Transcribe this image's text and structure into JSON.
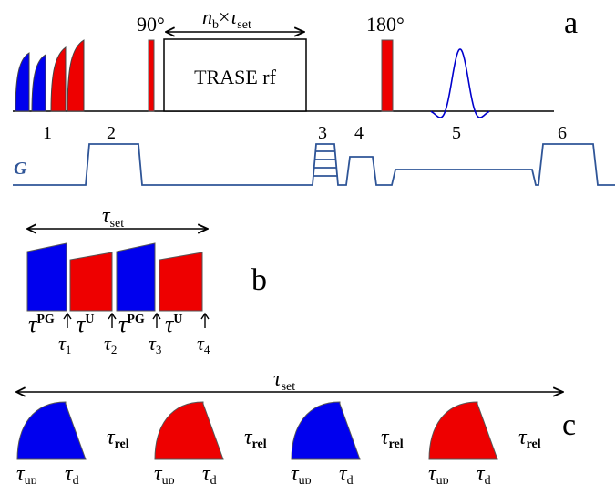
{
  "colors": {
    "blue": "#0000ee",
    "red": "#ee0000",
    "gradient_line": "#2f5597",
    "stroke": "#000000",
    "wave": "#0000cc",
    "g_label": "#2f5597"
  },
  "panel_a": {
    "label": "a",
    "pulse_90_label": "90°",
    "pulse_180_label": "180°",
    "nb_label": {
      "n": "n",
      "n_sub": "b",
      "times": "×",
      "tau": "τ",
      "tau_sub": "set"
    },
    "trase_label": "TRASE rf",
    "gradient_axis_label": "G",
    "segment_numbers": [
      "1",
      "2",
      "3",
      "4",
      "5",
      "6"
    ]
  },
  "panel_b": {
    "label": "b",
    "tau": "τ",
    "tau_sub": "set",
    "pulse_labels": [
      {
        "tau": "τ",
        "sup": "PG"
      },
      {
        "tau": "τ",
        "sup": "U"
      },
      {
        "tau": "τ",
        "sup": "PG"
      },
      {
        "tau": "τ",
        "sup": "U"
      }
    ],
    "time_marks": [
      {
        "tau": "τ",
        "sub": "1"
      },
      {
        "tau": "τ",
        "sub": "2"
      },
      {
        "tau": "τ",
        "sub": "3"
      },
      {
        "tau": "τ",
        "sub": "4"
      }
    ]
  },
  "panel_c": {
    "label": "c",
    "tau": "τ",
    "tau_sub": "set",
    "cycles": [
      {
        "up": "up",
        "d": "d",
        "rel": "rel"
      },
      {
        "up": "up",
        "d": "d",
        "rel": "rel"
      },
      {
        "up": "up",
        "d": "d",
        "rel": "rel"
      },
      {
        "up": "up",
        "d": "d",
        "rel": "rel"
      }
    ]
  }
}
